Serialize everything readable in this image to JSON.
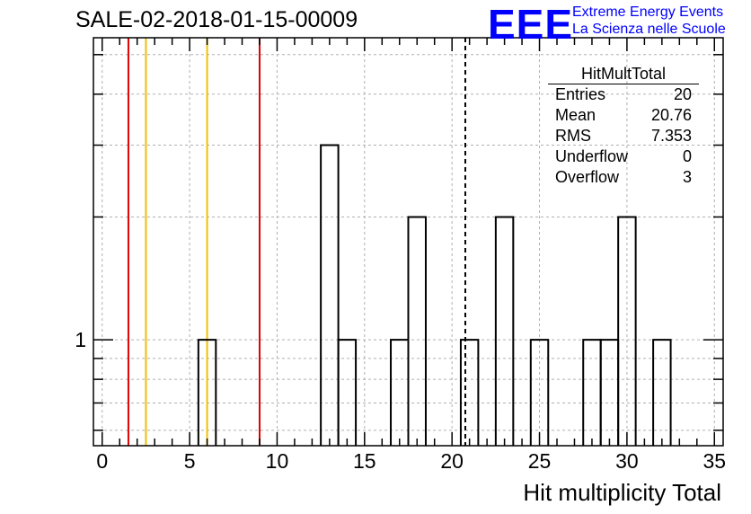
{
  "header": {
    "run_title": "SALE-02-2018-01-15-00009"
  },
  "logo": {
    "mark": "EEE",
    "line1": "Extreme Energy Events",
    "line2": "La Scienza nelle Scuole",
    "color": "#0000ff"
  },
  "stats_box": {
    "title": "HitMultTotal",
    "rows": [
      {
        "label": "Entries",
        "value": "20"
      },
      {
        "label": "Mean",
        "value": "20.76"
      },
      {
        "label": "RMS",
        "value": "7.353"
      },
      {
        "label": "Underflow",
        "value": "0"
      },
      {
        "label": "Overflow",
        "value": "3"
      }
    ]
  },
  "chart_data": {
    "type": "histogram",
    "xlabel": "Hit multiplicity Total",
    "ylabel": "",
    "xlim": [
      -0.5,
      35.5
    ],
    "ylim": [
      0.55,
      5.5
    ],
    "y_log_scale": true,
    "grid": true,
    "x_ticks": [
      0,
      5,
      10,
      15,
      20,
      25,
      30,
      35
    ],
    "y_tick_labels": [
      {
        "value": 1,
        "label": "1"
      }
    ],
    "bins": [
      {
        "low": 5.5,
        "high": 6.5,
        "count": 1
      },
      {
        "low": 12.5,
        "high": 13.5,
        "count": 3
      },
      {
        "low": 13.5,
        "high": 14.5,
        "count": 1
      },
      {
        "low": 16.5,
        "high": 17.5,
        "count": 1
      },
      {
        "low": 17.5,
        "high": 18.5,
        "count": 2
      },
      {
        "low": 20.5,
        "high": 21.5,
        "count": 1
      },
      {
        "low": 22.5,
        "high": 23.5,
        "count": 2
      },
      {
        "low": 24.5,
        "high": 25.5,
        "count": 1
      },
      {
        "low": 27.5,
        "high": 28.5,
        "count": 1
      },
      {
        "low": 28.5,
        "high": 29.5,
        "count": 1
      },
      {
        "low": 29.5,
        "high": 30.5,
        "count": 2
      },
      {
        "low": 31.5,
        "high": 32.5,
        "count": 1
      }
    ],
    "reference_lines": [
      {
        "x": 1.5,
        "color": "#e00000",
        "style": "solid"
      },
      {
        "x": 2.5,
        "color": "#f0c000",
        "style": "solid"
      },
      {
        "x": 6.0,
        "color": "#f0c000",
        "style": "solid"
      },
      {
        "x": 9.0,
        "color": "#e00000",
        "style": "solid"
      },
      {
        "x": 20.76,
        "color": "#000000",
        "style": "dashed"
      }
    ]
  }
}
